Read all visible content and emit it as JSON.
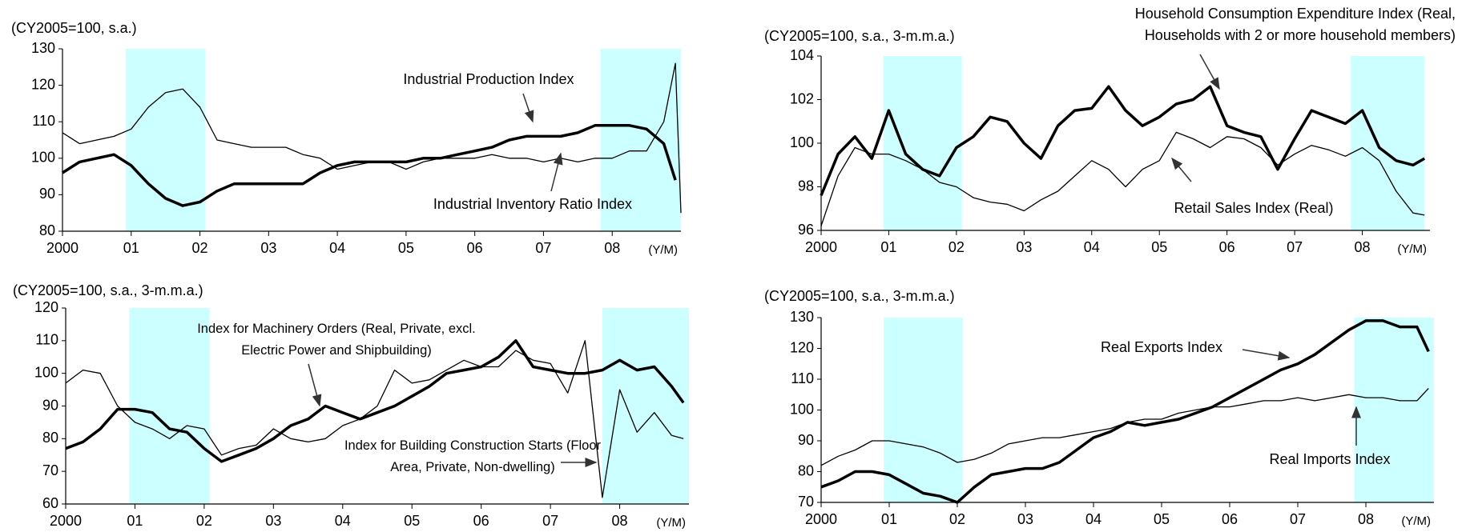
{
  "chart_data": [
    {
      "type": "line",
      "y_unit": "(CY2005=100, s.a.)",
      "x_unit": "(Y/M)",
      "xlim": [
        2000,
        2009
      ],
      "ylim": [
        80,
        130
      ],
      "xticks": [
        {
          "value": 2000,
          "label": "2000"
        },
        {
          "value": 2001,
          "label": "01"
        },
        {
          "value": 2002,
          "label": "02"
        },
        {
          "value": 2003,
          "label": "03"
        },
        {
          "value": 2004,
          "label": "04"
        },
        {
          "value": 2005,
          "label": "05"
        },
        {
          "value": 2006,
          "label": "06"
        },
        {
          "value": 2007,
          "label": "07"
        },
        {
          "value": 2008,
          "label": "08"
        }
      ],
      "yticks": [
        80,
        90,
        100,
        110,
        120,
        130
      ],
      "shaded": [
        [
          2000.92,
          2002.08
        ],
        [
          2007.83,
          2009
        ]
      ],
      "shade_color": "#ccffff",
      "x": [
        2000,
        2000.25,
        2000.5,
        2000.75,
        2001,
        2001.25,
        2001.5,
        2001.75,
        2002,
        2002.25,
        2002.5,
        2002.75,
        2003,
        2003.25,
        2003.5,
        2003.75,
        2004,
        2004.25,
        2004.5,
        2004.75,
        2005,
        2005.25,
        2005.5,
        2005.75,
        2006,
        2006.25,
        2006.5,
        2006.75,
        2007,
        2007.25,
        2007.5,
        2007.75,
        2008,
        2008.25,
        2008.5,
        2008.75,
        2008.92,
        2009
      ],
      "series": [
        {
          "name": "Industrial Production Index",
          "color": "#000000",
          "line_width": 3.5,
          "values": [
            96,
            99,
            100,
            101,
            98,
            93,
            89,
            87,
            88,
            91,
            93,
            93,
            93,
            93,
            93,
            96,
            98,
            99,
            99,
            99,
            99,
            100,
            100,
            101,
            102,
            103,
            105,
            106,
            106,
            106,
            107,
            109,
            109,
            109,
            108,
            104,
            94,
            null
          ]
        },
        {
          "name": "Industrial Inventory Ratio Index",
          "color": "#000000",
          "line_width": 1.3,
          "values": [
            107,
            104,
            105,
            106,
            108,
            114,
            118,
            119,
            114,
            105,
            104,
            103,
            103,
            103,
            101,
            100,
            97,
            98,
            99,
            99,
            97,
            99,
            100,
            100,
            100,
            101,
            100,
            100,
            99,
            100,
            99,
            100,
            100,
            102,
            102,
            110,
            126,
            85
          ]
        }
      ]
    },
    {
      "type": "line",
      "y_unit": "(CY2005=100, s.a., 3-m.m.a.)",
      "x_unit": "(Y/M)",
      "xlim": [
        2000,
        2009
      ],
      "ylim": [
        96,
        104
      ],
      "xticks": [
        {
          "value": 2000,
          "label": "2000"
        },
        {
          "value": 2001,
          "label": "01"
        },
        {
          "value": 2002,
          "label": "02"
        },
        {
          "value": 2003,
          "label": "03"
        },
        {
          "value": 2004,
          "label": "04"
        },
        {
          "value": 2005,
          "label": "05"
        },
        {
          "value": 2006,
          "label": "06"
        },
        {
          "value": 2007,
          "label": "07"
        },
        {
          "value": 2008,
          "label": "08"
        }
      ],
      "yticks": [
        96,
        98,
        100,
        102,
        104
      ],
      "shaded": [
        [
          2000.92,
          2002.08
        ],
        [
          2007.83,
          2008.92
        ]
      ],
      "shade_color": "#ccffff",
      "x": [
        2000,
        2000.25,
        2000.5,
        2000.75,
        2001,
        2001.25,
        2001.5,
        2001.75,
        2002,
        2002.25,
        2002.5,
        2002.75,
        2003,
        2003.25,
        2003.5,
        2003.75,
        2004,
        2004.25,
        2004.5,
        2004.75,
        2005,
        2005.25,
        2005.5,
        2005.75,
        2006,
        2006.25,
        2006.5,
        2006.75,
        2007,
        2007.25,
        2007.5,
        2007.75,
        2008,
        2008.25,
        2008.5,
        2008.75,
        2008.92
      ],
      "series": [
        {
          "name": "Household Consumption Expenditure Index (Real, Households with 2 or more household members)",
          "color": "#000000",
          "line_width": 3.5,
          "values": [
            97.6,
            99.5,
            100.3,
            99.3,
            101.5,
            99.5,
            98.8,
            98.5,
            99.8,
            100.3,
            101.2,
            101.0,
            100,
            99.3,
            100.8,
            101.5,
            101.6,
            102.6,
            101.5,
            100.8,
            101.2,
            101.8,
            102,
            102.6,
            100.8,
            100.5,
            100.3,
            98.8,
            100.2,
            101.5,
            101.2,
            100.9,
            101.5,
            99.8,
            99.2,
            99.0,
            99.3
          ]
        },
        {
          "name": "Retail Sales Index (Real)",
          "color": "#000000",
          "line_width": 1.3,
          "values": [
            96.2,
            98.5,
            99.8,
            99.5,
            99.5,
            99.2,
            98.8,
            98.2,
            98,
            97.5,
            97.3,
            97.2,
            96.9,
            97.4,
            97.8,
            98.5,
            99.2,
            98.8,
            98,
            98.8,
            99.2,
            100.5,
            100.2,
            99.8,
            100.3,
            100.2,
            99.8,
            99,
            99.5,
            99.9,
            99.7,
            99.4,
            99.8,
            99.2,
            97.8,
            96.8,
            96.7
          ]
        }
      ]
    },
    {
      "type": "line",
      "y_unit": "(CY2005=100, s.a., 3-m.m.a.)",
      "x_unit": "(Y/M)",
      "xlim": [
        2000,
        2009
      ],
      "ylim": [
        60,
        120
      ],
      "xticks": [
        {
          "value": 2000,
          "label": "2000"
        },
        {
          "value": 2001,
          "label": "01"
        },
        {
          "value": 2002,
          "label": "02"
        },
        {
          "value": 2003,
          "label": "03"
        },
        {
          "value": 2004,
          "label": "04"
        },
        {
          "value": 2005,
          "label": "05"
        },
        {
          "value": 2006,
          "label": "06"
        },
        {
          "value": 2007,
          "label": "07"
        },
        {
          "value": 2008,
          "label": "08"
        }
      ],
      "yticks": [
        60,
        70,
        80,
        90,
        100,
        110,
        120
      ],
      "shaded": [
        [
          2000.92,
          2002.08
        ],
        [
          2007.75,
          2009
        ]
      ],
      "shade_color": "#ccffff",
      "x": [
        2000,
        2000.25,
        2000.5,
        2000.75,
        2001,
        2001.25,
        2001.5,
        2001.75,
        2002,
        2002.25,
        2002.5,
        2002.75,
        2003,
        2003.25,
        2003.5,
        2003.75,
        2004,
        2004.25,
        2004.5,
        2004.75,
        2005,
        2005.25,
        2005.5,
        2005.75,
        2006,
        2006.25,
        2006.5,
        2006.75,
        2007,
        2007.25,
        2007.5,
        2007.75,
        2008,
        2008.25,
        2008.5,
        2008.75,
        2008.92
      ],
      "series": [
        {
          "name": "Index for Machinery Orders (Real, Private, excl. Electric Power and Shipbuilding)",
          "color": "#000000",
          "line_width": 3.5,
          "values": [
            77,
            79,
            83,
            89,
            89,
            88,
            83,
            82,
            77,
            73,
            75,
            77,
            80,
            84,
            86,
            90,
            88,
            86,
            88,
            90,
            93,
            96,
            100,
            101,
            102,
            105,
            110,
            102,
            101,
            100,
            100,
            101,
            104,
            101,
            102,
            96,
            91
          ]
        },
        {
          "name": "Index for Building Construction Starts (Floor Area, Private, Non-dwelling)",
          "color": "#000000",
          "line_width": 1.3,
          "values": [
            97,
            101,
            100,
            90,
            85,
            83,
            80,
            84,
            83,
            75,
            77,
            78,
            83,
            80,
            79,
            80,
            84,
            86,
            90,
            101,
            97,
            98,
            101,
            104,
            102,
            102,
            107,
            104,
            103,
            94,
            110,
            62,
            95,
            82,
            88,
            81,
            80
          ]
        }
      ]
    },
    {
      "type": "line",
      "y_unit": "(CY2005=100, s.a., 3-m.m.a.)",
      "x_unit": "(Y/M)",
      "xlim": [
        2000,
        2009
      ],
      "ylim": [
        70,
        130
      ],
      "xticks": [
        {
          "value": 2000,
          "label": "2000"
        },
        {
          "value": 2001,
          "label": "01"
        },
        {
          "value": 2002,
          "label": "02"
        },
        {
          "value": 2003,
          "label": "03"
        },
        {
          "value": 2004,
          "label": "04"
        },
        {
          "value": 2005,
          "label": "05"
        },
        {
          "value": 2006,
          "label": "06"
        },
        {
          "value": 2007,
          "label": "07"
        },
        {
          "value": 2008,
          "label": "08"
        }
      ],
      "yticks": [
        70,
        80,
        90,
        100,
        110,
        120,
        130
      ],
      "shaded": [
        [
          2000.92,
          2002.08
        ],
        [
          2007.83,
          2009
        ]
      ],
      "shade_color": "#ccffff",
      "x": [
        2000,
        2000.25,
        2000.5,
        2000.75,
        2001,
        2001.25,
        2001.5,
        2001.75,
        2002,
        2002.25,
        2002.5,
        2002.75,
        2003,
        2003.25,
        2003.5,
        2003.75,
        2004,
        2004.25,
        2004.5,
        2004.75,
        2005,
        2005.25,
        2005.5,
        2005.75,
        2006,
        2006.25,
        2006.5,
        2006.75,
        2007,
        2007.25,
        2007.5,
        2007.75,
        2008,
        2008.25,
        2008.5,
        2008.75,
        2008.92
      ],
      "series": [
        {
          "name": "Real Exports Index",
          "color": "#000000",
          "line_width": 3.5,
          "values": [
            75,
            77,
            80,
            80,
            79,
            76,
            73,
            72,
            70,
            75,
            79,
            80,
            81,
            81,
            83,
            87,
            91,
            93,
            96,
            95,
            96,
            97,
            99,
            101,
            104,
            107,
            110,
            113,
            115,
            118,
            122,
            126,
            129,
            129,
            127,
            127,
            119
          ]
        },
        {
          "name": "Real Imports Index",
          "color": "#000000",
          "line_width": 1.3,
          "values": [
            82,
            85,
            87,
            90,
            90,
            89,
            88,
            86,
            83,
            84,
            86,
            89,
            90,
            91,
            91,
            92,
            93,
            94,
            96,
            97,
            97,
            99,
            100,
            101,
            101,
            102,
            103,
            103,
            104,
            103,
            104,
            105,
            104,
            104,
            103,
            103,
            107
          ]
        }
      ]
    }
  ]
}
